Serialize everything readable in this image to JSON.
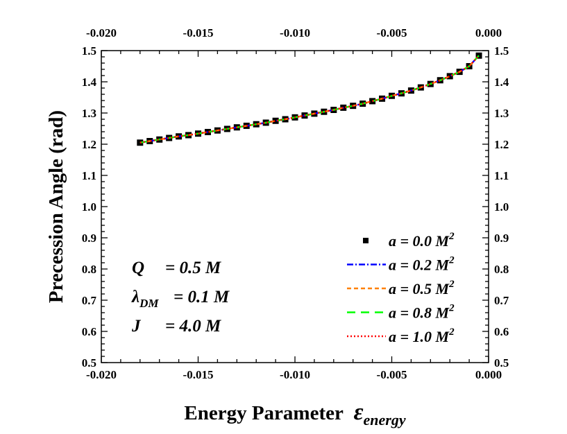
{
  "chart_data": {
    "type": "line",
    "xlabel": "Energy Parameter",
    "xlabel_symbol": "ε",
    "xlabel_subscript": "energy",
    "ylabel": "Precession Angle (rad)",
    "xlim": [
      -0.02,
      0.0
    ],
    "ylim": [
      0.5,
      1.5
    ],
    "xticks": [
      "-0.020",
      "-0.015",
      "-0.010",
      "-0.005",
      "0.000"
    ],
    "xtick_values": [
      -0.02,
      -0.015,
      -0.01,
      -0.005,
      0.0
    ],
    "yticks": [
      "0.5",
      "0.6",
      "0.7",
      "0.8",
      "0.9",
      "1.0",
      "1.1",
      "1.2",
      "1.3",
      "1.4",
      "1.5"
    ],
    "ytick_values": [
      0.5,
      0.6,
      0.7,
      0.8,
      0.9,
      1.0,
      1.1,
      1.2,
      1.3,
      1.4,
      1.5
    ],
    "mirror_axes": true,
    "grid": false,
    "legend_placement": "bottom-right",
    "x": [
      -0.018,
      -0.0175,
      -0.017,
      -0.0165,
      -0.016,
      -0.0155,
      -0.015,
      -0.0145,
      -0.014,
      -0.0135,
      -0.013,
      -0.0125,
      -0.012,
      -0.0115,
      -0.011,
      -0.0105,
      -0.01,
      -0.0095,
      -0.009,
      -0.0085,
      -0.008,
      -0.0075,
      -0.007,
      -0.0065,
      -0.006,
      -0.0055,
      -0.005,
      -0.0045,
      -0.004,
      -0.0035,
      -0.003,
      -0.0025,
      -0.002,
      -0.0015,
      -0.001,
      -0.0005
    ],
    "series": [
      {
        "name": "a = 0.0 M",
        "sup": "2",
        "style": "markers",
        "color": "#000000",
        "values": [
          1.205,
          1.21,
          1.215,
          1.22,
          1.225,
          1.229,
          1.234,
          1.239,
          1.244,
          1.249,
          1.254,
          1.259,
          1.264,
          1.269,
          1.275,
          1.28,
          1.286,
          1.292,
          1.298,
          1.304,
          1.31,
          1.317,
          1.323,
          1.33,
          1.338,
          1.346,
          1.355,
          1.363,
          1.372,
          1.382,
          1.393,
          1.405,
          1.418,
          1.432,
          1.45,
          1.484
        ]
      },
      {
        "name": "a = 0.2 M",
        "sup": "2",
        "style": "dashdot",
        "color": "#0000ff",
        "values": [
          1.205,
          1.21,
          1.215,
          1.22,
          1.225,
          1.229,
          1.234,
          1.239,
          1.244,
          1.249,
          1.254,
          1.259,
          1.264,
          1.269,
          1.275,
          1.28,
          1.286,
          1.292,
          1.298,
          1.304,
          1.31,
          1.317,
          1.323,
          1.33,
          1.338,
          1.346,
          1.355,
          1.363,
          1.372,
          1.382,
          1.393,
          1.405,
          1.418,
          1.432,
          1.45,
          1.484
        ]
      },
      {
        "name": "a = 0.5 M",
        "sup": "2",
        "style": "dashed",
        "color": "#ff8000",
        "values": [
          1.205,
          1.21,
          1.215,
          1.22,
          1.225,
          1.229,
          1.234,
          1.239,
          1.244,
          1.249,
          1.254,
          1.259,
          1.264,
          1.269,
          1.275,
          1.28,
          1.286,
          1.292,
          1.298,
          1.304,
          1.31,
          1.317,
          1.323,
          1.33,
          1.338,
          1.346,
          1.355,
          1.363,
          1.372,
          1.382,
          1.393,
          1.405,
          1.418,
          1.432,
          1.45,
          1.484
        ]
      },
      {
        "name": "a = 0.8 M",
        "sup": "2",
        "style": "longdash",
        "color": "#00ff00",
        "values": [
          1.205,
          1.21,
          1.215,
          1.22,
          1.225,
          1.229,
          1.234,
          1.239,
          1.244,
          1.249,
          1.254,
          1.259,
          1.264,
          1.269,
          1.275,
          1.28,
          1.286,
          1.292,
          1.298,
          1.304,
          1.31,
          1.317,
          1.323,
          1.33,
          1.338,
          1.346,
          1.355,
          1.363,
          1.372,
          1.382,
          1.393,
          1.405,
          1.418,
          1.432,
          1.45,
          1.484
        ]
      },
      {
        "name": "a = 1.0 M",
        "sup": "2",
        "style": "dotted",
        "color": "#ff0000",
        "values": [
          1.205,
          1.21,
          1.215,
          1.22,
          1.225,
          1.229,
          1.234,
          1.239,
          1.244,
          1.249,
          1.254,
          1.259,
          1.264,
          1.269,
          1.275,
          1.28,
          1.286,
          1.292,
          1.298,
          1.304,
          1.31,
          1.317,
          1.323,
          1.33,
          1.338,
          1.346,
          1.355,
          1.363,
          1.372,
          1.382,
          1.393,
          1.405,
          1.418,
          1.432,
          1.45,
          1.484
        ]
      }
    ],
    "annotations": [
      {
        "sym": "Q",
        "sub": "",
        "text": "= 0.5 M"
      },
      {
        "sym": "λ",
        "sub": "DM",
        "text": "= 0.1 M"
      },
      {
        "sym": "J",
        "sub": "",
        "text": "=  4.0 M"
      }
    ]
  }
}
